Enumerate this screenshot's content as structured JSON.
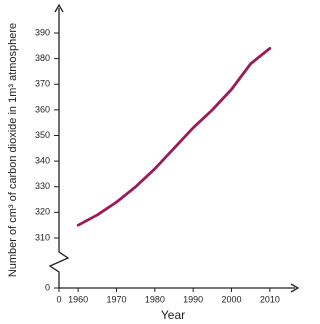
{
  "chart_data": {
    "type": "line",
    "xlabel": "Year",
    "ylabel": "Number of cm³ of carbon dioxide in 1m³ atmosphere",
    "x": [
      1960,
      1965,
      1970,
      1975,
      1980,
      1985,
      1990,
      1995,
      2000,
      2005,
      2010
    ],
    "series": [
      {
        "name": "CO2",
        "color": "#9b1b5a",
        "values": [
          315,
          319,
          324,
          330,
          337,
          345,
          353,
          360,
          368,
          378,
          384
        ]
      }
    ],
    "xlim": [
      1955,
      2015
    ],
    "xticks": [
      0,
      1960,
      1970,
      1980,
      1990,
      2000,
      2010
    ],
    "ylim": [
      305,
      395
    ],
    "yticks": [
      0,
      310,
      320,
      330,
      340,
      350,
      360,
      370,
      380,
      390
    ],
    "axis_break": true
  }
}
